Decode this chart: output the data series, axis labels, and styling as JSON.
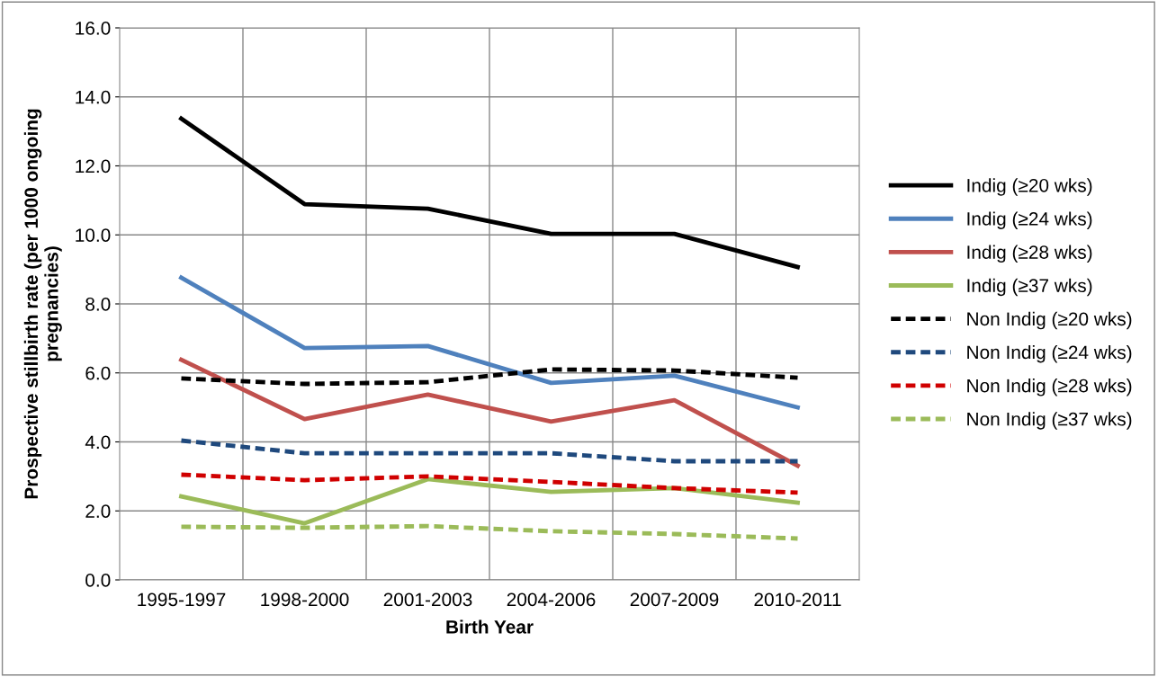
{
  "chart_data": {
    "type": "line",
    "xlabel": "Birth Year",
    "ylabel": "Prospective stillbirth rate (per 1000 ongoing\npregnancies)",
    "categories": [
      "1995-1997",
      "1998-2000",
      "2001-2003",
      "2004-2006",
      "2007-2009",
      "2010-2011"
    ],
    "series": [
      {
        "name": "Indig (≥20 wks)",
        "color": "#000000",
        "line_style": "solid",
        "values": [
          13.37,
          10.89,
          10.76,
          10.03,
          10.03,
          9.07
        ]
      },
      {
        "name": "Indig (≥24 wks)",
        "color": "#4f81bd",
        "line_style": "solid",
        "values": [
          8.76,
          6.72,
          6.78,
          5.71,
          5.92,
          5.0
        ]
      },
      {
        "name": "Indig (≥28 wks)",
        "color": "#c0504d",
        "line_style": "solid",
        "values": [
          6.38,
          4.66,
          5.37,
          4.59,
          5.21,
          3.31
        ]
      },
      {
        "name": "Indig (≥37 wks)",
        "color": "#9bbb59",
        "line_style": "solid",
        "values": [
          2.42,
          1.64,
          2.92,
          2.55,
          2.66,
          2.24
        ]
      },
      {
        "name": "Non Indig (≥20 wks)",
        "color": "#000000",
        "line_style": "dashed",
        "values": [
          5.84,
          5.68,
          5.73,
          6.1,
          6.07,
          5.86
        ]
      },
      {
        "name": "Non Indig (≥24 wks)",
        "color": "#1f497d",
        "line_style": "dashed",
        "values": [
          4.04,
          3.67,
          3.67,
          3.67,
          3.44,
          3.44
        ]
      },
      {
        "name": "Non Indig (≥28 wks)",
        "color": "#d00000",
        "line_style": "dashed",
        "values": [
          3.05,
          2.89,
          3.0,
          2.84,
          2.66,
          2.53
        ]
      },
      {
        "name": "Non Indig (≥37 wks)",
        "color": "#9bbb59",
        "line_style": "dashed",
        "values": [
          1.54,
          1.51,
          1.56,
          1.41,
          1.33,
          1.2
        ]
      }
    ],
    "ylim": [
      0,
      16
    ],
    "yticks": [
      {
        "value": 0,
        "label": "0.0"
      },
      {
        "value": 2,
        "label": "2.0"
      },
      {
        "value": 4,
        "label": "4.0"
      },
      {
        "value": 6,
        "label": "6.0"
      },
      {
        "value": 8,
        "label": "8.0"
      },
      {
        "value": 10,
        "label": "10.0"
      },
      {
        "value": 12,
        "label": "12.0"
      },
      {
        "value": 14,
        "label": "14.0"
      },
      {
        "value": 16,
        "label": "16.0"
      }
    ],
    "grid": true,
    "legend": "right",
    "marker": "none"
  }
}
